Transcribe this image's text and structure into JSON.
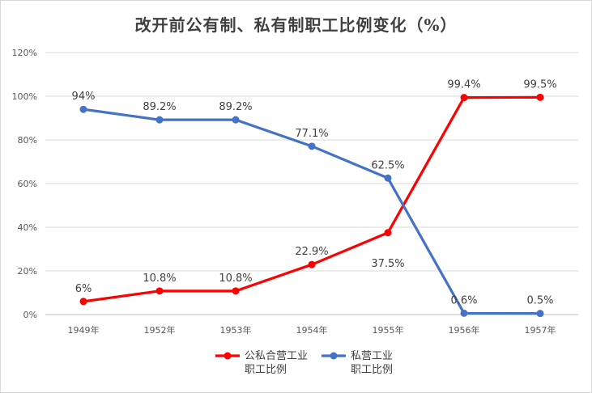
{
  "colors": {
    "state_private_series": "#ff0000",
    "private_series": "#4472c4",
    "gridline": "#d9d9d9"
  },
  "chart_data": {
    "type": "line",
    "title": "改开前公有制、私有制职工比例变化（%）",
    "categories": [
      "1949年",
      "1952年",
      "1953年",
      "1954年",
      "1955年",
      "1956年",
      "1957年"
    ],
    "y_ticks": [
      "0%",
      "20%",
      "40%",
      "60%",
      "80%",
      "100%",
      "120%"
    ],
    "ylim": [
      0,
      120
    ],
    "grid": true,
    "legend_position": "bottom",
    "series": [
      {
        "name": "公私合营工业职工比例",
        "name_lines": [
          "公私合营工业",
          "职工比例"
        ],
        "color": "#ff0000",
        "values": [
          6,
          10.8,
          10.8,
          22.9,
          37.5,
          99.4,
          99.5
        ],
        "labels": [
          "6%",
          "10.8%",
          "10.8%",
          "22.9%",
          "37.5%",
          "99.4%",
          "99.5%"
        ]
      },
      {
        "name": "私营工业职工比例",
        "name_lines": [
          "私营工业",
          "职工比例"
        ],
        "color": "#4472c4",
        "values": [
          94,
          89.2,
          89.2,
          77.1,
          62.5,
          0.6,
          0.5
        ],
        "labels": [
          "94%",
          "89.2%",
          "89.2%",
          "77.1%",
          "62.5%",
          "0.6%",
          "0.5%"
        ]
      }
    ]
  }
}
